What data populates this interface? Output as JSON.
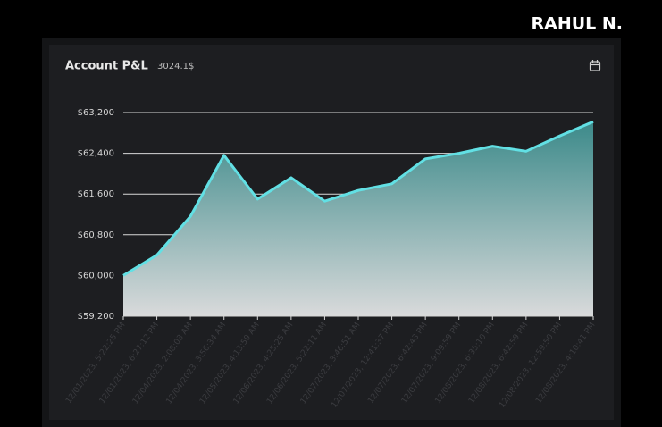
{
  "brand": "RAHUL N.",
  "chart_data": {
    "type": "area",
    "title": "Account P&L",
    "subtitle": "3024.1$",
    "categories": [
      "12/01/2023, 5:22:25 PM",
      "12/01/2023, 6:27:12 PM",
      "12/04/2023, 2:08:03 AM",
      "12/04/2023, 3:56:34 AM",
      "12/05/2023, 4:13:59 AM",
      "12/06/2023, 4:25:25 AM",
      "12/06/2023, 5:22:11 AM",
      "12/07/2023, 3:46:51 AM",
      "12/07/2023, 12:41:37 PM",
      "12/07/2023, 6:42:43 PM",
      "12/07/2023, 9:09:59 PM",
      "12/08/2023, 6:35:10 PM",
      "12/08/2023, 6:42:59 PM",
      "12/08/2023, 12:59:50 PM",
      "12/08/2023, 4:10:41 PM"
    ],
    "values": [
      60000,
      60400,
      61160,
      62360,
      61500,
      61920,
      61460,
      61670,
      61800,
      62290,
      62400,
      62540,
      62440,
      62740,
      63020
    ],
    "color": "#62e0e4",
    "ylim": [
      59200,
      63200
    ],
    "yticks": [
      {
        "value": 59200,
        "label": "$59,200"
      },
      {
        "value": 60000,
        "label": "$60,000"
      },
      {
        "value": 60800,
        "label": "$60,800"
      },
      {
        "value": 61600,
        "label": "$61,600"
      },
      {
        "value": 62400,
        "label": "$62,400"
      },
      {
        "value": 63200,
        "label": "$63,200"
      }
    ],
    "grid": true
  }
}
